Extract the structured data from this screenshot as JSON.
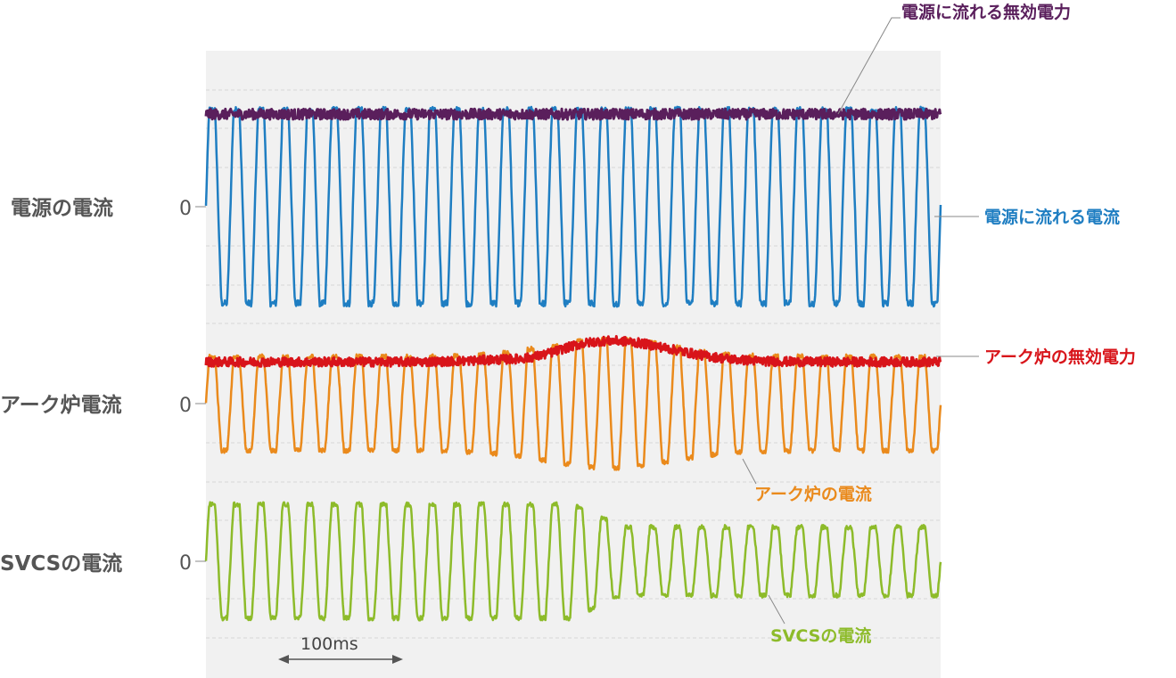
{
  "chart_data": {
    "type": "line",
    "panels": [
      {
        "row_label": "電源の電流",
        "zero_label": "0",
        "series": [
          {
            "name": "電源に流れる無効電力",
            "color": "#5a1f5c",
            "kind": "reactive",
            "base": 0.88,
            "amp": 0.02,
            "noise": 0.05
          },
          {
            "name": "電源に流れる電流",
            "color": "#1f7ec2",
            "kind": "wave",
            "amp": 0.92,
            "period_ms": 20
          }
        ]
      },
      {
        "row_label": "アーク炉電流",
        "zero_label": "0",
        "series": [
          {
            "name": "アーク炉の無効電力",
            "color": "#d8141a",
            "kind": "reactive",
            "base": 0.55,
            "amp": 0.28,
            "noise": 0.06
          },
          {
            "name": "アーク炉の電流",
            "color": "#ea8a1c",
            "kind": "wave",
            "amp": 0.62,
            "amp_peak": 0.85,
            "period_ms": 20
          }
        ]
      },
      {
        "row_label": "SVCSの電流",
        "zero_label": "0",
        "series": [
          {
            "name": "SVCSの電流",
            "color": "#8dbb2a",
            "kind": "wave",
            "amp": 0.75,
            "amp_min": 0.45,
            "period_ms": 20
          }
        ]
      }
    ],
    "time_ms": [
      0,
      600
    ],
    "scale_bar": {
      "label": "100ms",
      "duration_ms": 100
    },
    "grid": true
  }
}
